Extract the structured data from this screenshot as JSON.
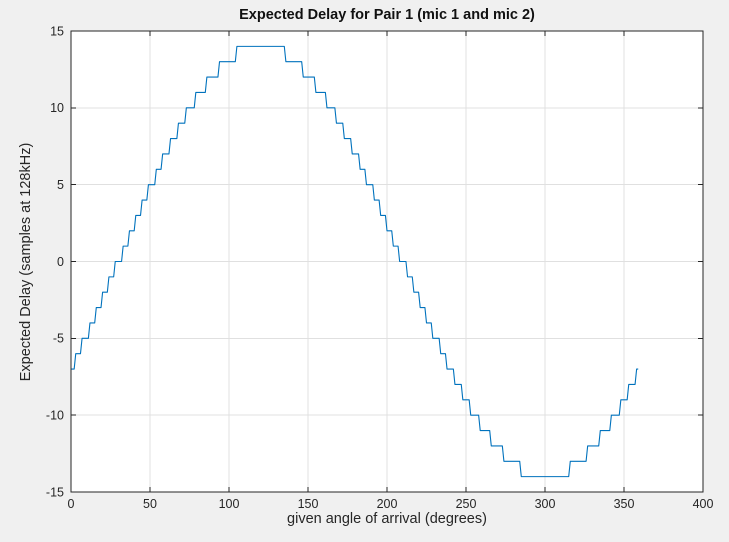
{
  "window": {
    "background_color": "#f0f0f0"
  },
  "chart_data": {
    "type": "line",
    "title": "Expected Delay for Pair 1 (mic 1 and mic 2)",
    "xlabel": "given angle of arrival (degrees)",
    "ylabel": "Expected Delay (samples at 128kHz)",
    "xlim": [
      0,
      400
    ],
    "ylim": [
      -15,
      15
    ],
    "x_ticks": [
      0,
      50,
      100,
      150,
      200,
      250,
      300,
      350,
      400
    ],
    "y_ticks": [
      -15,
      -10,
      -5,
      0,
      5,
      10,
      15
    ],
    "grid": true,
    "legend": "none",
    "line_color": "#0072bd",
    "axis_color": "#262626",
    "grid_color": "#e0e0e0",
    "plot_bg": "#ffffff",
    "figure_bg": "#f0f0f0",
    "series": [
      {
        "name": "expected-delay-pair-1",
        "x_start": 0,
        "x_step": 1,
        "x_end": 359,
        "y_formula": "round(14*sin((x-30)*pi/180))",
        "y_run_length": [
          [
            -7,
            3
          ],
          [
            -6,
            4
          ],
          [
            -5,
            5
          ],
          [
            -4,
            4
          ],
          [
            -3,
            4
          ],
          [
            -2,
            4
          ],
          [
            -1,
            4
          ],
          [
            0,
            5
          ],
          [
            1,
            4
          ],
          [
            2,
            4
          ],
          [
            3,
            4
          ],
          [
            4,
            4
          ],
          [
            5,
            5
          ],
          [
            6,
            4
          ],
          [
            7,
            5
          ],
          [
            8,
            5
          ],
          [
            9,
            5
          ],
          [
            10,
            6
          ],
          [
            11,
            7
          ],
          [
            12,
            8
          ],
          [
            13,
            11
          ],
          [
            14,
            31
          ],
          [
            13,
            11
          ],
          [
            12,
            8
          ],
          [
            11,
            7
          ],
          [
            10,
            6
          ],
          [
            9,
            5
          ],
          [
            8,
            5
          ],
          [
            7,
            5
          ],
          [
            6,
            4
          ],
          [
            5,
            5
          ],
          [
            4,
            4
          ],
          [
            3,
            4
          ],
          [
            2,
            4
          ],
          [
            1,
            4
          ],
          [
            0,
            5
          ],
          [
            -1,
            4
          ],
          [
            -2,
            4
          ],
          [
            -3,
            4
          ],
          [
            -4,
            4
          ],
          [
            -5,
            5
          ],
          [
            -6,
            4
          ],
          [
            -7,
            5
          ],
          [
            -8,
            5
          ],
          [
            -9,
            5
          ],
          [
            -10,
            6
          ],
          [
            -11,
            7
          ],
          [
            -12,
            8
          ],
          [
            -13,
            11
          ],
          [
            -14,
            31
          ],
          [
            -13,
            11
          ],
          [
            -12,
            8
          ],
          [
            -11,
            7
          ],
          [
            -10,
            6
          ],
          [
            -9,
            5
          ],
          [
            -8,
            5
          ],
          [
            -7,
            2
          ]
        ]
      }
    ]
  }
}
